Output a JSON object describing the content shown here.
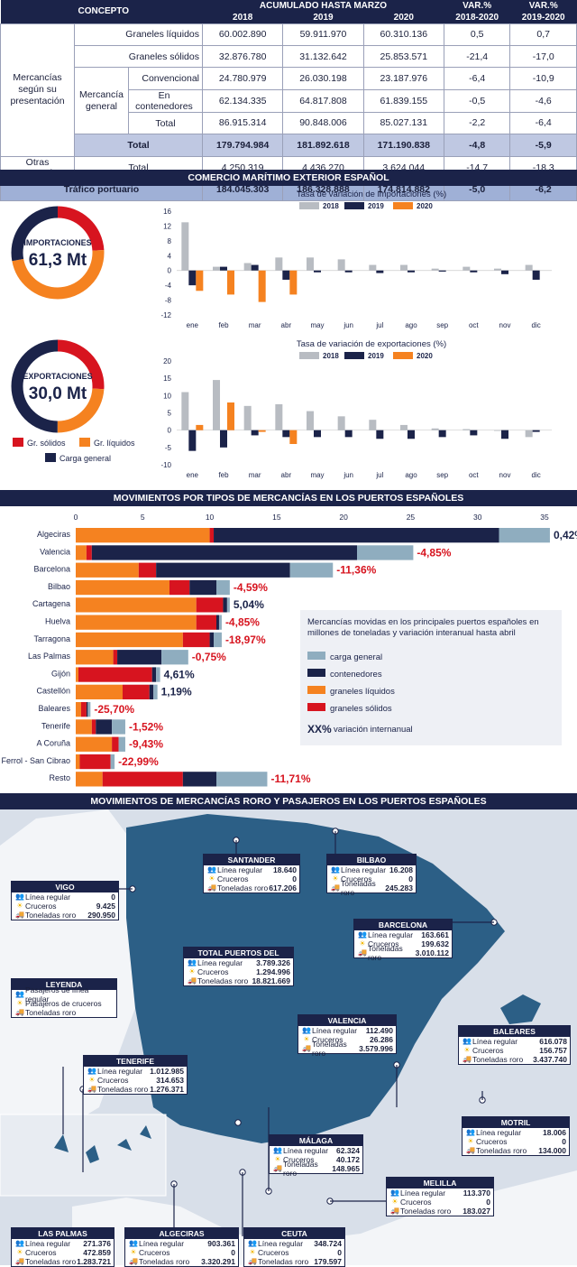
{
  "table": {
    "h_concept": "CONCEPTO",
    "h_acum": "ACUMULADO HASTA MARZO",
    "h_var1": "VAR.%",
    "h_var2": "VAR.%",
    "y2018": "2018",
    "y2019": "2019",
    "y2020": "2020",
    "v1820": "2018-2020",
    "v1920": "2019-2020",
    "grp1": "Mercancías según su presentación",
    "grp2": "Mercancía general",
    "rows": [
      {
        "label": "Graneles líquidos",
        "v": [
          "60.002.890",
          "59.911.970",
          "60.310.136",
          "0,5",
          "0,7"
        ]
      },
      {
        "label": "Graneles sólidos",
        "v": [
          "32.876.780",
          "31.132.642",
          "25.853.571",
          "-21,4",
          "-17,0"
        ]
      },
      {
        "label": "Convencional",
        "v": [
          "24.780.979",
          "26.030.198",
          "23.187.976",
          "-6,4",
          "-10,9"
        ]
      },
      {
        "label": "En contenedores",
        "v": [
          "62.134.335",
          "64.817.808",
          "61.839.155",
          "-0,5",
          "-4,6"
        ]
      },
      {
        "label": "Total",
        "v": [
          "86.915.314",
          "90.848.006",
          "85.027.131",
          "-2,2",
          "-6,4"
        ]
      },
      {
        "label": "Total",
        "v": [
          "179.794.984",
          "181.892.618",
          "171.190.838",
          "-4,8",
          "-5,9"
        ]
      },
      {
        "group": "Otras mercancías",
        "label": "Total",
        "v": [
          "4.250.319",
          "4.436.270",
          "3.624.044",
          "-14,7",
          "-18,3"
        ]
      },
      {
        "label": "Tráfico portuario",
        "v": [
          "184.045.303",
          "186.328.888",
          "174.814.882",
          "-5,0",
          "-6,2"
        ]
      }
    ]
  },
  "sec1": "COMERCIO MARÍTIMO EXTERIOR ESPAÑOL",
  "sec2": "MOVIMIENTOS POR TIPOS DE MERCANCÍAS EN LOS PUERTOS ESPAÑOLES",
  "sec3": "MOVIMIENTOS DE MERCANCÍAS RORO Y PASAJEROS EN LOS PUERTOS ESPAÑOLES",
  "donuts": {
    "imp": {
      "label": "IMPORTACIONES",
      "value": "61,3 Mt",
      "shares": [
        0.24,
        0.48,
        0.28
      ]
    },
    "exp": {
      "label": "EXPORTACIONES",
      "value": "30,0 Mt",
      "shares": [
        0.26,
        0.24,
        0.5
      ]
    },
    "legend": [
      "Gr. sólidos",
      "Gr. líquidos",
      "Carga general"
    ],
    "colors": [
      "#d7141f",
      "#f58220",
      "#1b2349"
    ]
  },
  "chart_data": [
    {
      "type": "bar",
      "title": "Tasa de variación de importaciones (%)",
      "categories": [
        "ene",
        "feb",
        "mar",
        "abr",
        "may",
        "jun",
        "jul",
        "ago",
        "sep",
        "oct",
        "nov",
        "dic"
      ],
      "ylim": [
        -12,
        16
      ],
      "yticks": [
        16,
        12,
        8,
        4,
        0,
        -4,
        -8,
        -12
      ],
      "series": [
        {
          "name": "2018",
          "color": "#b8bcc2",
          "values": [
            13,
            1,
            2,
            3.5,
            3.5,
            3,
            1.5,
            1.5,
            0.5,
            1,
            0.5,
            1.5
          ]
        },
        {
          "name": "2019",
          "color": "#1b2349",
          "values": [
            -4,
            1,
            1.5,
            -2.5,
            -0.5,
            -0.5,
            -0.7,
            -0.5,
            -0.3,
            -0.5,
            -1,
            -2.5
          ]
        },
        {
          "name": "2020",
          "color": "#f58220",
          "values": [
            -5.5,
            -6.5,
            -8.5,
            -6.5,
            null,
            null,
            null,
            null,
            null,
            null,
            null,
            null
          ]
        }
      ]
    },
    {
      "type": "bar",
      "title": "Tasa de variación de exportaciones (%)",
      "categories": [
        "ene",
        "feb",
        "mar",
        "abr",
        "may",
        "jun",
        "jul",
        "ago",
        "sep",
        "oct",
        "nov",
        "dic"
      ],
      "ylim": [
        -10,
        20
      ],
      "yticks": [
        20,
        15,
        10,
        5,
        0,
        -5,
        -10
      ],
      "series": [
        {
          "name": "2018",
          "color": "#b8bcc2",
          "values": [
            11,
            14.5,
            7,
            7.5,
            5.5,
            4,
            3,
            1.5,
            0.5,
            0.3,
            0,
            -2
          ]
        },
        {
          "name": "2019",
          "color": "#1b2349",
          "values": [
            -6,
            -5,
            -1.5,
            -2,
            -2,
            -2,
            -2.5,
            -2.5,
            -2,
            -1.5,
            -2.5,
            -0.5
          ]
        },
        {
          "name": "2020",
          "color": "#f58220",
          "values": [
            1.5,
            8,
            -0.5,
            -4,
            null,
            null,
            null,
            null,
            null,
            null,
            null,
            null
          ]
        }
      ]
    },
    {
      "type": "bar",
      "stacked": true,
      "orientation": "horizontal",
      "xlim": [
        0,
        35
      ],
      "xticks": [
        0,
        5,
        10,
        15,
        20,
        25,
        30,
        35
      ],
      "categories": [
        "Algeciras",
        "Valencia",
        "Barcelona",
        "Bilbao",
        "Cartagena",
        "Huelva",
        "Tarragona",
        "Las Palmas",
        "Gijón",
        "Castellón",
        "Baleares",
        "Tenerife",
        "A Coruña",
        "Ferrol - San Cibrao",
        "Resto"
      ],
      "series": [
        {
          "name": "graneles líquidos",
          "color": "#f58220",
          "values": [
            10,
            0.8,
            4.7,
            7,
            9,
            9,
            8,
            2.8,
            0.2,
            3.5,
            0.4,
            1.2,
            2.7,
            0.3,
            2
          ]
        },
        {
          "name": "graneles sólidos",
          "color": "#d7141f",
          "values": [
            0.3,
            0.4,
            1.3,
            1.5,
            2,
            1.5,
            2,
            0.3,
            5.5,
            2,
            0.4,
            0.3,
            0.5,
            2.3,
            6
          ]
        },
        {
          "name": "contenedores",
          "color": "#1b2349",
          "values": [
            21.3,
            19.8,
            10,
            2,
            0.3,
            0.2,
            0.3,
            3.3,
            0.3,
            0.3,
            0.1,
            1.2,
            0,
            0,
            2.5
          ]
        },
        {
          "name": "carga general",
          "color": "#8fadbf",
          "values": [
            3.8,
            4.2,
            3.2,
            1,
            0.2,
            0.2,
            0.6,
            2,
            0.3,
            0.3,
            0.2,
            1,
            0.5,
            0.3,
            3.8
          ]
        }
      ],
      "variation": [
        {
          "text": "0,42%",
          "color": "#1b2349"
        },
        {
          "text": "-4,85%",
          "color": "#d7141f"
        },
        {
          "text": "-11,36%",
          "color": "#d7141f"
        },
        {
          "text": "-4,59%",
          "color": "#d7141f"
        },
        {
          "text": "5,04%",
          "color": "#1b2349"
        },
        {
          "text": "-4,85%",
          "color": "#d7141f"
        },
        {
          "text": "-18,97%",
          "color": "#d7141f"
        },
        {
          "text": "-0,75%",
          "color": "#d7141f"
        },
        {
          "text": "4,61%",
          "color": "#1b2349"
        },
        {
          "text": "1,19%",
          "color": "#1b2349"
        },
        {
          "text": "-25,70%",
          "color": "#d7141f"
        },
        {
          "text": "-1,52%",
          "color": "#d7141f"
        },
        {
          "text": "-9,43%",
          "color": "#d7141f"
        },
        {
          "text": "-22,99%",
          "color": "#d7141f"
        },
        {
          "text": "-11,71%",
          "color": "#d7141f"
        }
      ],
      "legend_title": "Mercancías movidas en los principales puertos españoles en millones de toneladas y variación interanual hasta abril",
      "legend_items": [
        {
          "text": "carga general",
          "color": "#8fadbf"
        },
        {
          "text": "contenedores",
          "color": "#1b2349"
        },
        {
          "text": "graneles líquidos",
          "color": "#f58220"
        },
        {
          "text": "graneles sólidos",
          "color": "#d7141f"
        }
      ],
      "legend_var_sym": "XX%",
      "legend_var_text": "variación internanual"
    }
  ],
  "map": {
    "labels": {
      "reg": "Línea regular",
      "cru": "Cruceros",
      "ton": "Toneladas roro"
    },
    "leyenda": {
      "title": "LEYENDA",
      "items": [
        "Pasajeros de línea regular",
        "Pasajeros de cruceros",
        "Toneladas roro"
      ]
    },
    "ports": [
      {
        "name": "SANTANDER",
        "v": [
          "18.640",
          "0",
          "617.206"
        ]
      },
      {
        "name": "BILBAO",
        "v": [
          "16.208",
          "0",
          "245.283"
        ]
      },
      {
        "name": "VIGO",
        "v": [
          "0",
          "9.425",
          "290.950"
        ]
      },
      {
        "name": "BARCELONA",
        "v": [
          "163.661",
          "199.632",
          "3.010.112"
        ]
      },
      {
        "name": "TOTAL PUERTOS DEL ESTADO",
        "v": [
          "3.789.326",
          "1.294.996",
          "18.821.669"
        ]
      },
      {
        "name": "VALENCIA",
        "v": [
          "112.490",
          "26.286",
          "3.579.996"
        ]
      },
      {
        "name": "BALEARES",
        "v": [
          "616.078",
          "156.757",
          "3.437.740"
        ]
      },
      {
        "name": "TENERIFE",
        "v": [
          "1.012.985",
          "314.653",
          "1.276.371"
        ]
      },
      {
        "name": "MOTRIL",
        "v": [
          "18.006",
          "0",
          "134.000"
        ]
      },
      {
        "name": "MÁLAGA",
        "v": [
          "62.324",
          "40.172",
          "148.965"
        ]
      },
      {
        "name": "MELILLA",
        "v": [
          "113.370",
          "0",
          "183.027"
        ]
      },
      {
        "name": "LAS PALMAS",
        "v": [
          "271.376",
          "472.859",
          "1.283.721"
        ]
      },
      {
        "name": "ALGECIRAS",
        "v": [
          "903.361",
          "0",
          "3.320.291"
        ]
      },
      {
        "name": "CEUTA",
        "v": [
          "348.724",
          "0",
          "179.597"
        ]
      }
    ]
  }
}
